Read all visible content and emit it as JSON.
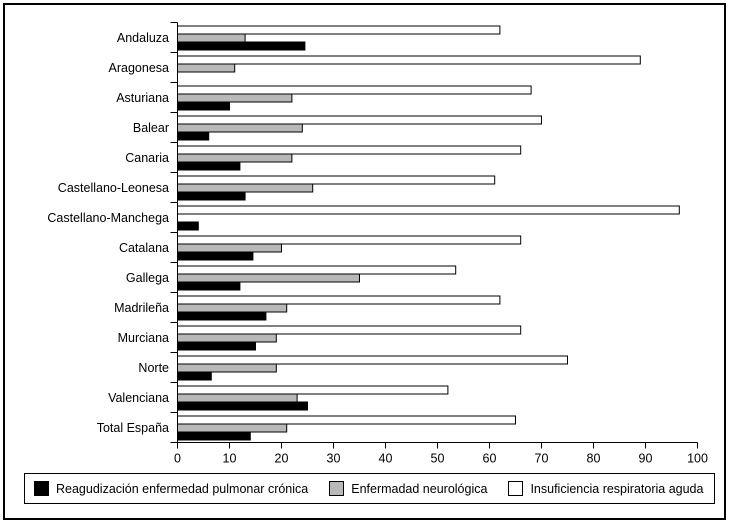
{
  "figure": {
    "background": "#ffffff",
    "border_color": "#000000",
    "text_color": "#000000"
  },
  "chart_data": {
    "type": "bar",
    "orientation": "horizontal",
    "title": "",
    "xlabel": "",
    "ylabel": "",
    "xlim": [
      0,
      100
    ],
    "xticks": [
      0,
      10,
      20,
      30,
      40,
      50,
      60,
      70,
      80,
      90,
      100
    ],
    "grid": false,
    "legend_position": "bottom",
    "bar_outline_color": "#000000",
    "categories": [
      "Andaluza",
      "Aragonesa",
      "Asturiana",
      "Balear",
      "Canaria",
      "Castellano-Leonesa",
      "Castellano-Manchega",
      "Catalana",
      "Gallega",
      "Madrileña",
      "Murciana",
      "Norte",
      "Valenciana",
      "Total España"
    ],
    "series": [
      {
        "name": "Reagudización enfermedad pulmonar crónica",
        "color": "#000000",
        "values": [
          24.5,
          0,
          10,
          6,
          12,
          13,
          4,
          14.5,
          12,
          17,
          15,
          6.5,
          25,
          14
        ]
      },
      {
        "name": "Enfermadad neurológica",
        "color": "#b8b8b8",
        "values": [
          13,
          11,
          22,
          24,
          22,
          26,
          0,
          20,
          35,
          21,
          19,
          19,
          23,
          21
        ]
      },
      {
        "name": "Insuficiencia respiratoria aguda",
        "color": "#ffffff",
        "values": [
          62,
          89,
          68,
          70,
          66,
          61,
          96.5,
          66,
          53.5,
          62,
          66,
          75,
          52,
          65
        ]
      }
    ],
    "group_draw_order_top_to_bottom": [
      "Insuficiencia respiratoria aguda",
      "Enfermadad neurológica",
      "Reagudización enfermedad pulmonar crónica"
    ]
  }
}
